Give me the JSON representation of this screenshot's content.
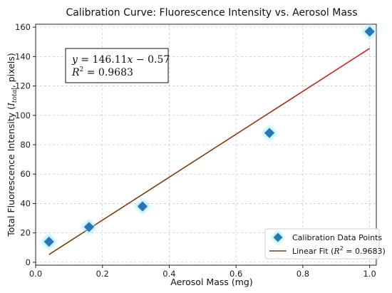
{
  "chart_data": {
    "type": "scatter",
    "title": "Calibration Curve: Fluorescence Intensity vs. Aerosol Mass",
    "xlabel": "Aerosol Mass (mg)",
    "ylabel_main": "Total Fluorescence Intensity (",
    "ylabel_var": "I",
    "ylabel_sub": "total",
    "ylabel_tail": ", pixels)",
    "xlim": [
      0.0,
      1.02
    ],
    "ylim": [
      -2,
      162
    ],
    "xticks": [
      0.0,
      0.2,
      0.4,
      0.6,
      0.8,
      1.0
    ],
    "xtick_labels": [
      "0.0",
      "0.2",
      "0.4",
      "0.6",
      "0.8",
      "1.0"
    ],
    "yticks": [
      0,
      20,
      40,
      60,
      80,
      100,
      120,
      140,
      160
    ],
    "ytick_labels": [
      "0",
      "20",
      "40",
      "60",
      "80",
      "100",
      "120",
      "140",
      "160"
    ],
    "grid": true,
    "legend_position": "bottom-right",
    "series": [
      {
        "name": "Calibration Data Points",
        "kind": "scatter",
        "marker": "diamond",
        "color": "#1f77b4",
        "x": [
          0.04,
          0.16,
          0.32,
          0.7,
          1.0
        ],
        "y": [
          14,
          24,
          38,
          88,
          157
        ]
      },
      {
        "name": "Linear Fit",
        "kind": "line",
        "x": [
          0.04,
          1.0
        ],
        "y": [
          5.27,
          145.54
        ]
      }
    ],
    "legend_fit_prefix": "Linear Fit (",
    "legend_fit_r2": "R",
    "legend_fit_sup": "2",
    "legend_fit_suffix": " = 0.9683)",
    "annotation": {
      "line1_y": "y",
      "line1_eq": " = 146.11",
      "line1_x": "x",
      "line1_rest": " − 0.57",
      "line2_r": "R",
      "line2_sup": "2",
      "line2_rest": " = 0.9683",
      "position": "top-left"
    },
    "colors": {
      "fit_start": "#7a3b0a",
      "fit_end": "#e31a1c",
      "marker": "#2a74b8",
      "marker_glow": "#7fe3f0"
    }
  }
}
